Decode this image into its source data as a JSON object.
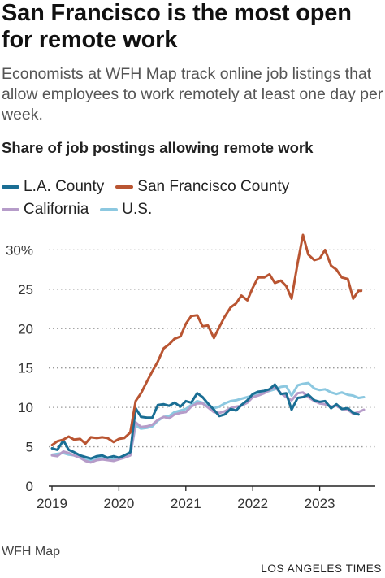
{
  "header": {
    "title": "San Francisco is the most open for remote work",
    "subtitle": "Economists at WFH Map track online job listings that allow employees to work remotely at least one day per week."
  },
  "footer": {
    "source": "WFH Map",
    "credit": "LOS ANGELES TIMES"
  },
  "chart_data": {
    "type": "line",
    "title": "Share of job postings allowing remote work",
    "xlabel": "",
    "ylabel": "",
    "x_ticks": [
      "2019",
      "2020",
      "2021",
      "2022",
      "2023"
    ],
    "y_ticks": [
      "0",
      "5",
      "10",
      "15",
      "20",
      "25",
      "30%"
    ],
    "y_tick_values": [
      0,
      5,
      10,
      15,
      20,
      25,
      30
    ],
    "ylim": [
      0,
      32
    ],
    "xlim": [
      2019.0,
      2023.83
    ],
    "grid": "horizontal dotted",
    "legend_position": "top-left",
    "series": [
      {
        "name": "L.A. County",
        "color": "#1a6e94",
        "points": [
          [
            2019.0,
            4.8
          ],
          [
            2019.08,
            4.6
          ],
          [
            2019.17,
            5.8
          ],
          [
            2019.25,
            4.6
          ],
          [
            2019.33,
            4.3
          ],
          [
            2019.42,
            3.9
          ],
          [
            2019.5,
            3.7
          ],
          [
            2019.58,
            3.5
          ],
          [
            2019.67,
            3.8
          ],
          [
            2019.75,
            3.9
          ],
          [
            2019.83,
            3.6
          ],
          [
            2019.92,
            3.8
          ],
          [
            2020.0,
            3.6
          ],
          [
            2020.08,
            3.9
          ],
          [
            2020.17,
            4.3
          ],
          [
            2020.25,
            9.9
          ],
          [
            2020.33,
            8.8
          ],
          [
            2020.42,
            8.7
          ],
          [
            2020.5,
            8.7
          ],
          [
            2020.58,
            10.3
          ],
          [
            2020.67,
            10.4
          ],
          [
            2020.75,
            10.2
          ],
          [
            2020.83,
            10.6
          ],
          [
            2020.92,
            10.1
          ],
          [
            2021.0,
            10.8
          ],
          [
            2021.08,
            10.6
          ],
          [
            2021.17,
            11.8
          ],
          [
            2021.25,
            11.3
          ],
          [
            2021.33,
            10.5
          ],
          [
            2021.42,
            9.7
          ],
          [
            2021.5,
            8.9
          ],
          [
            2021.58,
            9.1
          ],
          [
            2021.67,
            9.8
          ],
          [
            2021.75,
            9.6
          ],
          [
            2021.83,
            10.3
          ],
          [
            2021.92,
            10.9
          ],
          [
            2022.0,
            11.7
          ],
          [
            2022.08,
            12.0
          ],
          [
            2022.17,
            12.1
          ],
          [
            2022.25,
            12.3
          ],
          [
            2022.33,
            12.9
          ],
          [
            2022.42,
            11.7
          ],
          [
            2022.5,
            11.8
          ],
          [
            2022.58,
            9.7
          ],
          [
            2022.67,
            11.2
          ],
          [
            2022.75,
            11.3
          ],
          [
            2022.83,
            11.6
          ],
          [
            2022.92,
            10.9
          ],
          [
            2023.0,
            10.7
          ],
          [
            2023.08,
            10.8
          ],
          [
            2023.17,
            9.9
          ],
          [
            2023.25,
            10.4
          ],
          [
            2023.33,
            9.8
          ],
          [
            2023.42,
            9.9
          ],
          [
            2023.5,
            9.3
          ],
          [
            2023.58,
            9.1
          ]
        ]
      },
      {
        "name": "San Francisco County",
        "color": "#b95532",
        "points": [
          [
            2019.0,
            5.2
          ],
          [
            2019.08,
            5.7
          ],
          [
            2019.17,
            5.9
          ],
          [
            2019.25,
            6.3
          ],
          [
            2019.33,
            5.9
          ],
          [
            2019.42,
            6.0
          ],
          [
            2019.5,
            5.4
          ],
          [
            2019.58,
            6.2
          ],
          [
            2019.67,
            6.1
          ],
          [
            2019.75,
            6.2
          ],
          [
            2019.83,
            6.1
          ],
          [
            2019.92,
            5.6
          ],
          [
            2020.0,
            6.0
          ],
          [
            2020.08,
            6.1
          ],
          [
            2020.17,
            6.8
          ],
          [
            2020.25,
            10.8
          ],
          [
            2020.33,
            11.8
          ],
          [
            2020.42,
            13.3
          ],
          [
            2020.5,
            14.6
          ],
          [
            2020.58,
            15.8
          ],
          [
            2020.67,
            17.5
          ],
          [
            2020.75,
            18.0
          ],
          [
            2020.83,
            18.7
          ],
          [
            2020.92,
            19.0
          ],
          [
            2021.0,
            20.6
          ],
          [
            2021.08,
            21.6
          ],
          [
            2021.17,
            21.7
          ],
          [
            2021.25,
            20.3
          ],
          [
            2021.33,
            20.4
          ],
          [
            2021.42,
            18.8
          ],
          [
            2021.5,
            20.2
          ],
          [
            2021.58,
            21.5
          ],
          [
            2021.67,
            22.7
          ],
          [
            2021.75,
            23.2
          ],
          [
            2021.83,
            24.2
          ],
          [
            2021.92,
            23.6
          ],
          [
            2022.0,
            25.2
          ],
          [
            2022.08,
            26.5
          ],
          [
            2022.17,
            26.5
          ],
          [
            2022.25,
            26.9
          ],
          [
            2022.33,
            25.8
          ],
          [
            2022.42,
            26.1
          ],
          [
            2022.5,
            25.4
          ],
          [
            2022.58,
            23.8
          ],
          [
            2022.67,
            28.3
          ],
          [
            2022.75,
            31.9
          ],
          [
            2022.83,
            29.4
          ],
          [
            2022.92,
            28.7
          ],
          [
            2023.0,
            28.9
          ],
          [
            2023.08,
            30.0
          ],
          [
            2023.17,
            28.0
          ],
          [
            2023.25,
            27.5
          ],
          [
            2023.33,
            26.5
          ],
          [
            2023.42,
            26.3
          ],
          [
            2023.5,
            23.8
          ],
          [
            2023.58,
            24.8
          ],
          [
            2023.62,
            24.8
          ]
        ]
      },
      {
        "name": "California",
        "color": "#b69cc9",
        "points": [
          [
            2019.0,
            3.9
          ],
          [
            2019.08,
            3.8
          ],
          [
            2019.17,
            4.4
          ],
          [
            2019.25,
            4.2
          ],
          [
            2019.33,
            3.9
          ],
          [
            2019.42,
            3.6
          ],
          [
            2019.5,
            3.2
          ],
          [
            2019.58,
            3.0
          ],
          [
            2019.67,
            3.3
          ],
          [
            2019.75,
            3.4
          ],
          [
            2019.83,
            3.3
          ],
          [
            2019.92,
            3.2
          ],
          [
            2020.0,
            3.4
          ],
          [
            2020.08,
            3.6
          ],
          [
            2020.17,
            3.9
          ],
          [
            2020.25,
            8.1
          ],
          [
            2020.33,
            7.5
          ],
          [
            2020.42,
            7.6
          ],
          [
            2020.5,
            7.8
          ],
          [
            2020.58,
            8.4
          ],
          [
            2020.67,
            8.8
          ],
          [
            2020.75,
            8.6
          ],
          [
            2020.83,
            9.1
          ],
          [
            2020.92,
            9.3
          ],
          [
            2021.0,
            9.4
          ],
          [
            2021.08,
            10.1
          ],
          [
            2021.17,
            10.5
          ],
          [
            2021.25,
            10.5
          ],
          [
            2021.33,
            10.0
          ],
          [
            2021.42,
            9.4
          ],
          [
            2021.5,
            9.3
          ],
          [
            2021.58,
            9.5
          ],
          [
            2021.67,
            9.9
          ],
          [
            2021.75,
            10.1
          ],
          [
            2021.83,
            10.2
          ],
          [
            2021.92,
            10.6
          ],
          [
            2022.0,
            11.3
          ],
          [
            2022.08,
            11.5
          ],
          [
            2022.17,
            11.8
          ],
          [
            2022.25,
            12.2
          ],
          [
            2022.33,
            12.6
          ],
          [
            2022.42,
            11.8
          ],
          [
            2022.5,
            11.3
          ],
          [
            2022.58,
            10.9
          ],
          [
            2022.67,
            11.8
          ],
          [
            2022.75,
            11.9
          ],
          [
            2022.83,
            11.3
          ],
          [
            2022.92,
            10.8
          ],
          [
            2023.0,
            10.5
          ],
          [
            2023.08,
            10.4
          ],
          [
            2023.17,
            10.1
          ],
          [
            2023.25,
            10.2
          ],
          [
            2023.33,
            9.8
          ],
          [
            2023.42,
            9.7
          ],
          [
            2023.5,
            9.2
          ],
          [
            2023.58,
            9.4
          ],
          [
            2023.66,
            9.7
          ]
        ]
      },
      {
        "name": "U.S.",
        "color": "#8cc8e0",
        "points": [
          [
            2019.0,
            4.0
          ],
          [
            2019.08,
            4.1
          ],
          [
            2019.17,
            4.2
          ],
          [
            2019.25,
            4.0
          ],
          [
            2019.33,
            3.9
          ],
          [
            2019.42,
            3.7
          ],
          [
            2019.5,
            3.4
          ],
          [
            2019.58,
            3.3
          ],
          [
            2019.67,
            3.6
          ],
          [
            2019.75,
            3.6
          ],
          [
            2019.83,
            3.5
          ],
          [
            2019.92,
            3.4
          ],
          [
            2020.0,
            3.5
          ],
          [
            2020.08,
            3.7
          ],
          [
            2020.17,
            4.0
          ],
          [
            2020.25,
            7.7
          ],
          [
            2020.33,
            7.3
          ],
          [
            2020.42,
            7.4
          ],
          [
            2020.5,
            7.6
          ],
          [
            2020.58,
            8.3
          ],
          [
            2020.67,
            8.8
          ],
          [
            2020.75,
            8.9
          ],
          [
            2020.83,
            9.4
          ],
          [
            2020.92,
            9.6
          ],
          [
            2021.0,
            9.8
          ],
          [
            2021.08,
            10.3
          ],
          [
            2021.17,
            10.8
          ],
          [
            2021.25,
            10.6
          ],
          [
            2021.33,
            10.1
          ],
          [
            2021.42,
            9.9
          ],
          [
            2021.5,
            10.1
          ],
          [
            2021.58,
            10.5
          ],
          [
            2021.67,
            10.8
          ],
          [
            2021.75,
            10.9
          ],
          [
            2021.83,
            11.1
          ],
          [
            2021.92,
            11.3
          ],
          [
            2022.0,
            11.5
          ],
          [
            2022.08,
            11.8
          ],
          [
            2022.17,
            11.9
          ],
          [
            2022.25,
            12.1
          ],
          [
            2022.33,
            12.3
          ],
          [
            2022.42,
            12.6
          ],
          [
            2022.5,
            12.7
          ],
          [
            2022.58,
            11.5
          ],
          [
            2022.67,
            12.8
          ],
          [
            2022.75,
            13.0
          ],
          [
            2022.83,
            13.1
          ],
          [
            2022.92,
            12.4
          ],
          [
            2023.0,
            12.2
          ],
          [
            2023.08,
            12.3
          ],
          [
            2023.17,
            11.9
          ],
          [
            2023.25,
            11.7
          ],
          [
            2023.33,
            11.9
          ],
          [
            2023.42,
            11.6
          ],
          [
            2023.5,
            11.5
          ],
          [
            2023.58,
            11.2
          ],
          [
            2023.66,
            11.3
          ]
        ]
      }
    ]
  }
}
